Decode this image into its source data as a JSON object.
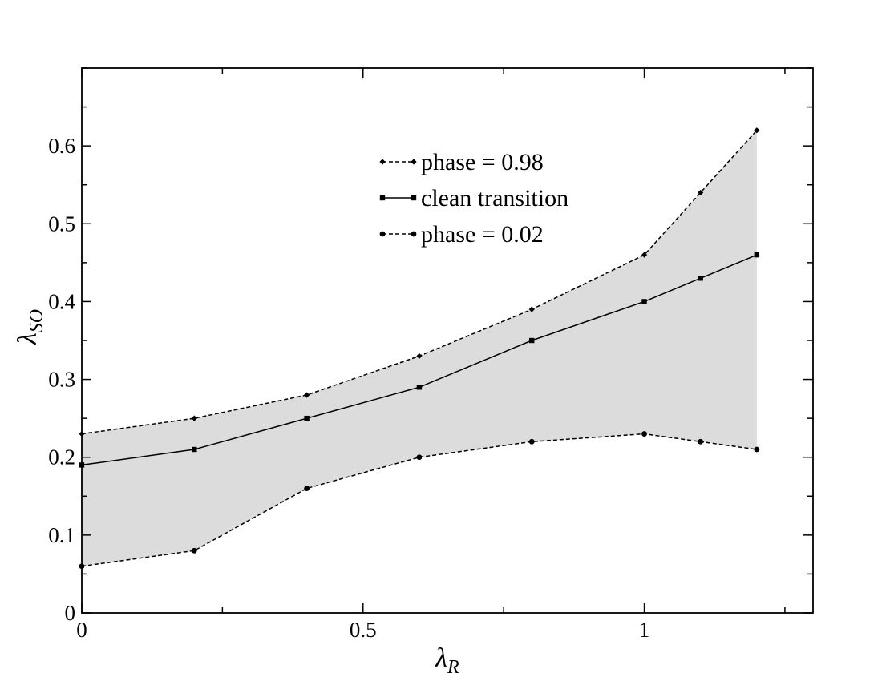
{
  "chart_data": {
    "type": "line",
    "xlabel": {
      "symbol": "λ",
      "subscript": "R"
    },
    "ylabel": {
      "symbol": "λ",
      "subscript": "SO"
    },
    "xlim": [
      0,
      1.3
    ],
    "ylim": [
      0,
      0.7
    ],
    "x_ticks": [
      {
        "value": 0,
        "label": "0"
      },
      {
        "value": 0.5,
        "label": "0.5"
      },
      {
        "value": 1,
        "label": "1"
      }
    ],
    "y_ticks": [
      {
        "value": 0,
        "label": "0"
      },
      {
        "value": 0.1,
        "label": "0.1"
      },
      {
        "value": 0.2,
        "label": "0.2"
      },
      {
        "value": 0.3,
        "label": "0.3"
      },
      {
        "value": 0.4,
        "label": "0.4"
      },
      {
        "value": 0.5,
        "label": "0.5"
      },
      {
        "value": 0.6,
        "label": "0.6"
      }
    ],
    "x_minor_step": 0.25,
    "y_minor_step": 0.05,
    "grid": false,
    "legend_position": "top-center",
    "x": [
      0,
      0.2,
      0.4,
      0.6,
      0.8,
      1.0,
      1.1,
      1.2
    ],
    "band": {
      "upper_series": "phase = 0.98",
      "lower_series": "phase = 0.02",
      "color": "#dcdcdc"
    },
    "series": [
      {
        "name": "phase = 0.98",
        "values": [
          0.23,
          0.25,
          0.28,
          0.33,
          0.39,
          0.46,
          0.54,
          0.62
        ],
        "line_style": "dashed",
        "marker": "diamond",
        "color": "#000000"
      },
      {
        "name": "clean transition",
        "values": [
          0.19,
          0.21,
          0.25,
          0.29,
          0.35,
          0.4,
          0.43,
          0.46
        ],
        "line_style": "solid",
        "marker": "square",
        "color": "#000000"
      },
      {
        "name": "phase = 0.02",
        "values": [
          0.06,
          0.08,
          0.16,
          0.2,
          0.22,
          0.23,
          0.22,
          0.21
        ],
        "line_style": "dashed",
        "marker": "circle",
        "color": "#000000"
      }
    ]
  }
}
